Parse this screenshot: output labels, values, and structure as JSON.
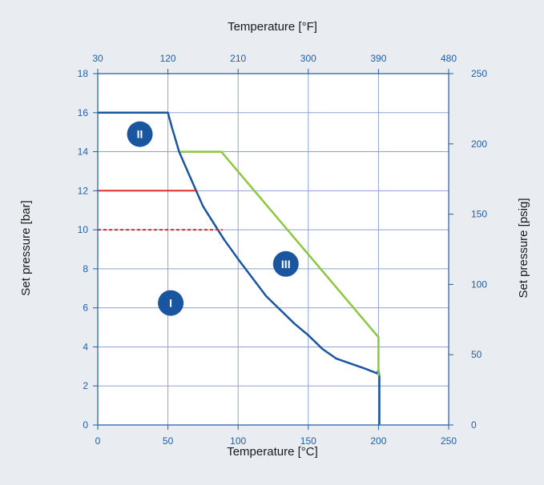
{
  "chart_data": {
    "type": "line",
    "background_color": "#e9ecf1",
    "plot_background_color": "#ffffff",
    "grid": true,
    "grid_color": "#8fa2d1",
    "axis_color": "#1f5fa8",
    "axes": {
      "x_bottom": {
        "label": "Temperature [°C]",
        "range": [
          0,
          250
        ],
        "ticks": [
          "0",
          "50",
          "100",
          "150",
          "200",
          "250"
        ]
      },
      "x_top": {
        "label": "Temperature [°F]",
        "range": [
          30,
          480
        ],
        "ticks": [
          "30",
          "120",
          "210",
          "300",
          "390",
          "480"
        ]
      },
      "y_left": {
        "label": "Set pressure [bar]",
        "range": [
          0,
          18
        ],
        "ticks": [
          "0",
          "2",
          "4",
          "6",
          "8",
          "10",
          "12",
          "14",
          "16",
          "18"
        ]
      },
      "y_right": {
        "label": "Set pressure [psig]",
        "range": [
          0,
          250
        ],
        "ticks": [
          "0",
          "50",
          "100",
          "150",
          "200",
          "250"
        ]
      }
    },
    "series": [
      {
        "color": "#1a56a0",
        "style": "solid",
        "points": [
          [
            0,
            16
          ],
          [
            50,
            16
          ],
          [
            53,
            15.2
          ],
          [
            58,
            14
          ],
          [
            64,
            13
          ],
          [
            75,
            11.2
          ],
          [
            90,
            9.5
          ],
          [
            100,
            8.5
          ],
          [
            120,
            6.6
          ],
          [
            140,
            5.2
          ],
          [
            150,
            4.6
          ],
          [
            160,
            3.9
          ],
          [
            170,
            3.4
          ],
          [
            190,
            2.9
          ],
          [
            199,
            2.65
          ],
          [
            200,
            2.8
          ],
          [
            200.6,
            2.5
          ],
          [
            200.6,
            0
          ]
        ]
      },
      {
        "color": "#8dc63f",
        "style": "solid",
        "points": [
          [
            59,
            14
          ],
          [
            88,
            14
          ],
          [
            200,
            4.5
          ],
          [
            200,
            2.5
          ]
        ]
      },
      {
        "color": "#e02c2c",
        "style": "solid",
        "points": [
          [
            0,
            12
          ],
          [
            70,
            12
          ]
        ]
      },
      {
        "color": "#e02c2c",
        "style": "dashed",
        "points": [
          [
            0,
            10
          ],
          [
            89,
            10
          ]
        ]
      }
    ],
    "annotations": [
      {
        "text": "II",
        "x": 30,
        "y": 14.9,
        "color": "#1a56a0"
      },
      {
        "text": "III",
        "x": 134,
        "y": 8.25,
        "color": "#1a56a0"
      },
      {
        "text": "I",
        "x": 52,
        "y": 6.25,
        "color": "#1a56a0"
      }
    ]
  }
}
